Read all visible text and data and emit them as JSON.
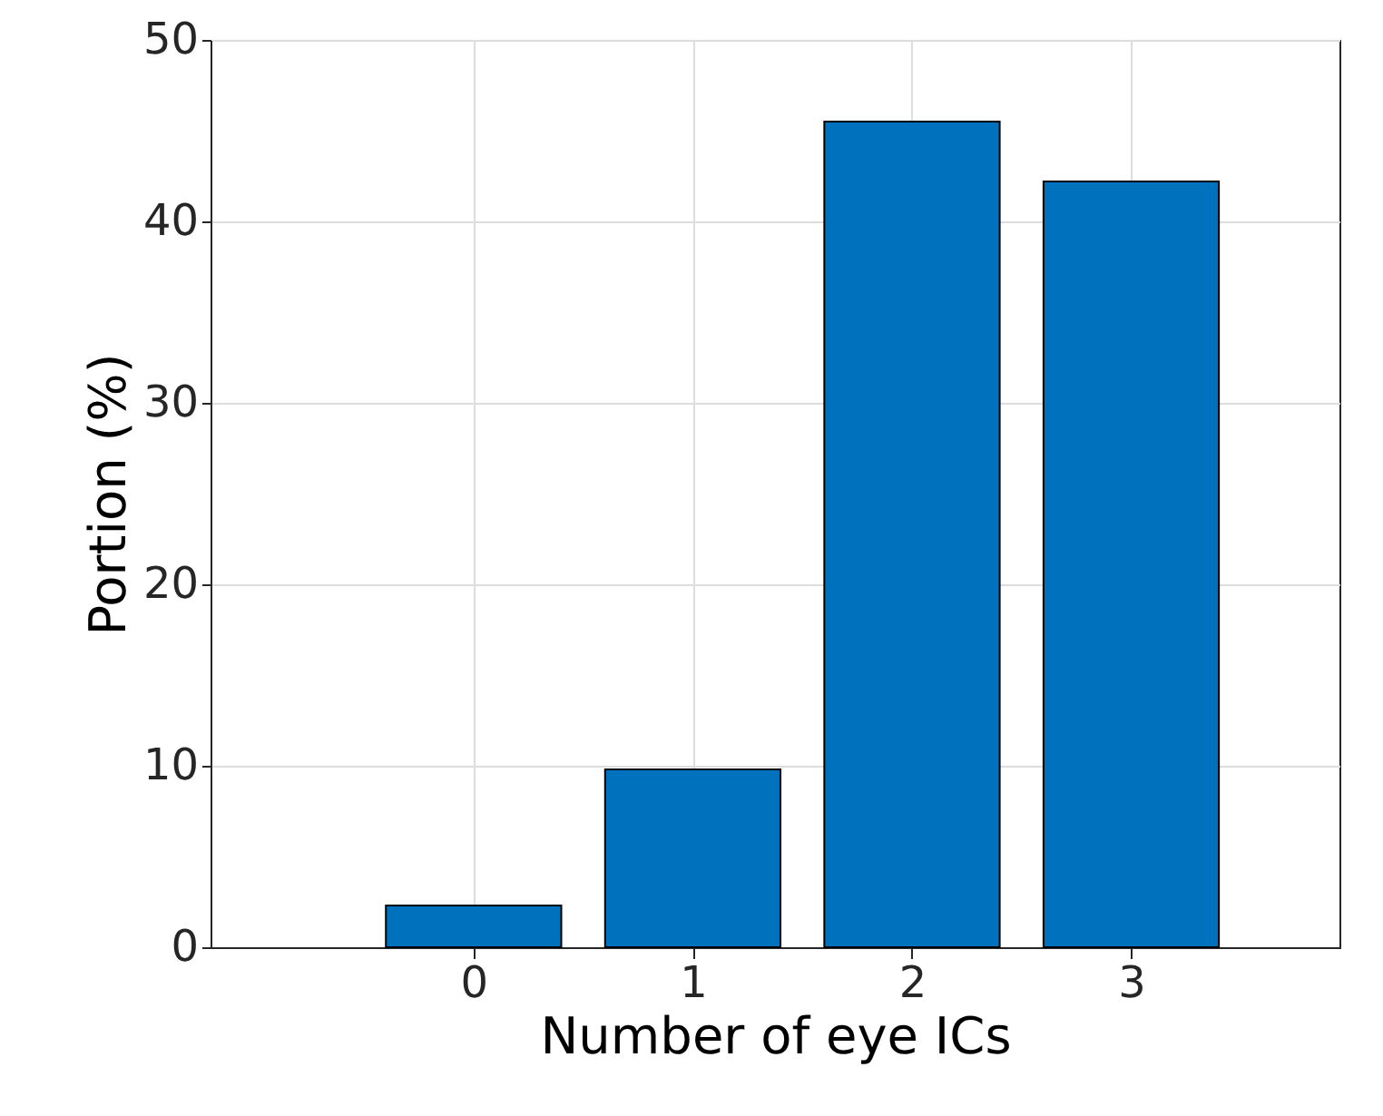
{
  "chart_data": {
    "type": "bar",
    "xlabel": "Number of eye ICs",
    "ylabel": "Portion (%)",
    "x": [
      0,
      1,
      2,
      3
    ],
    "values": [
      2.3,
      9.8,
      45.5,
      42.2
    ],
    "color": "#0072bd",
    "xlim": [
      -1.2,
      3.95
    ],
    "xticks": [
      0,
      1,
      2,
      3
    ],
    "ylim": [
      0,
      50
    ],
    "yticks": [
      0,
      10,
      20,
      30,
      40,
      50
    ],
    "grid": true,
    "legend": false
  }
}
